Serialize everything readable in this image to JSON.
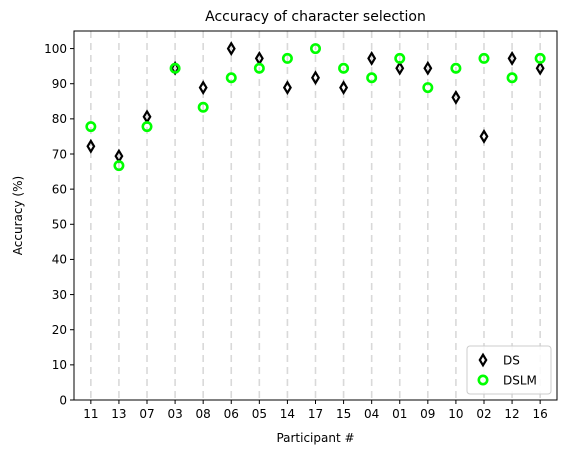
{
  "chart_data": {
    "type": "scatter",
    "title": "Accuracy of character selection",
    "xlabel": "Participant #",
    "ylabel": "Accuracy (%)",
    "categories": [
      "11",
      "13",
      "07",
      "03",
      "08",
      "06",
      "05",
      "14",
      "17",
      "15",
      "04",
      "01",
      "09",
      "10",
      "02",
      "12",
      "16"
    ],
    "ylim": [
      0,
      105
    ],
    "yticks": [
      0,
      10,
      20,
      30,
      40,
      50,
      60,
      70,
      80,
      90,
      100
    ],
    "grid": "vertical-dashed",
    "legend_position": "lower-right",
    "series": [
      {
        "name": "DS",
        "marker": "thin-diamond",
        "color": "#000000",
        "values": [
          72.2,
          69.4,
          80.6,
          94.4,
          88.9,
          100,
          97.2,
          88.9,
          91.7,
          88.9,
          97.2,
          94.4,
          94.4,
          86.1,
          75.0,
          97.2,
          94.4
        ]
      },
      {
        "name": "DSLM",
        "marker": "circle",
        "color": "#00ff00",
        "values": [
          77.8,
          66.7,
          77.8,
          94.4,
          83.3,
          91.7,
          94.4,
          97.2,
          100,
          94.4,
          91.7,
          97.2,
          88.9,
          94.4,
          97.2,
          91.7,
          97.2
        ]
      }
    ]
  }
}
